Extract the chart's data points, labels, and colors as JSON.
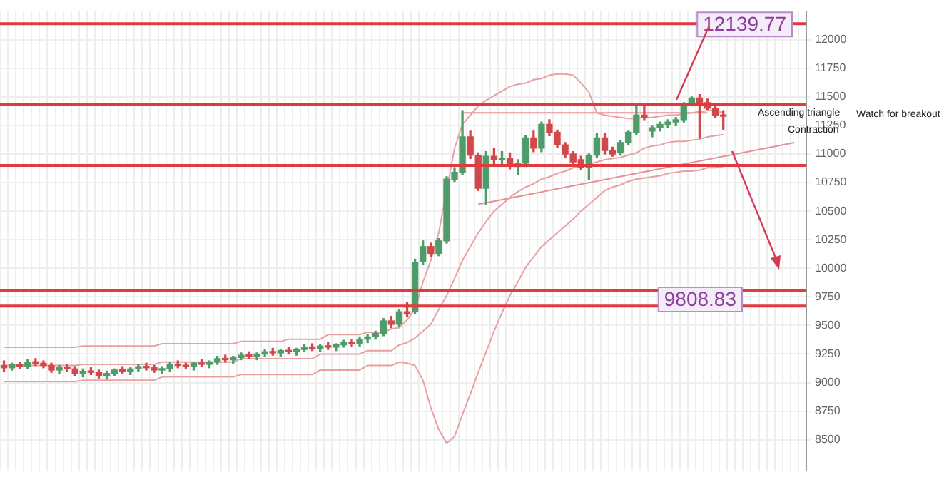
{
  "chart_data": {
    "type": "candlestick",
    "categories": [
      null,
      null,
      null,
      null,
      null,
      null,
      null,
      null,
      null,
      null,
      null,
      null,
      null,
      null,
      null,
      null,
      null,
      null,
      null,
      null,
      null,
      null,
      null,
      null,
      null,
      null,
      null,
      null,
      null,
      null,
      null,
      null,
      null,
      null,
      null,
      null,
      null,
      null,
      null,
      null,
      null,
      null,
      null,
      null,
      null,
      null,
      null,
      null,
      null,
      null,
      null,
      null,
      null,
      null,
      null,
      null,
      null,
      null,
      null,
      null,
      null,
      null,
      null,
      null,
      null,
      null,
      null,
      null,
      null,
      null,
      null,
      null,
      null,
      null,
      null,
      null,
      null,
      null,
      null,
      null,
      null,
      null,
      null,
      null,
      null,
      null,
      null,
      null,
      null,
      null,
      null,
      null,
      null,
      null,
      null,
      null,
      null,
      null,
      null,
      null,
      null,
      null
    ],
    "ohlc": [
      [
        9150,
        9190,
        9100,
        9130
      ],
      [
        9130,
        9170,
        9110,
        9160
      ],
      [
        9160,
        9180,
        9120,
        9140
      ],
      [
        9140,
        9200,
        9120,
        9180
      ],
      [
        9180,
        9210,
        9150,
        9170
      ],
      [
        9170,
        9190,
        9130,
        9150
      ],
      [
        9150,
        9170,
        9090,
        9110
      ],
      [
        9110,
        9150,
        9080,
        9130
      ],
      [
        9130,
        9160,
        9100,
        9120
      ],
      [
        9120,
        9140,
        9060,
        9080
      ],
      [
        9080,
        9120,
        9050,
        9100
      ],
      [
        9100,
        9130,
        9070,
        9090
      ],
      [
        9090,
        9110,
        9040,
        9060
      ],
      [
        9060,
        9100,
        9030,
        9080
      ],
      [
        9080,
        9120,
        9060,
        9110
      ],
      [
        9110,
        9140,
        9080,
        9100
      ],
      [
        9100,
        9130,
        9070,
        9120
      ],
      [
        9120,
        9160,
        9100,
        9140
      ],
      [
        9140,
        9170,
        9110,
        9130
      ],
      [
        9130,
        9150,
        9090,
        9110
      ],
      [
        9110,
        9140,
        9080,
        9120
      ],
      [
        9120,
        9180,
        9100,
        9160
      ],
      [
        9160,
        9190,
        9130,
        9150
      ],
      [
        9150,
        9170,
        9120,
        9140
      ],
      [
        9140,
        9180,
        9110,
        9170
      ],
      [
        9170,
        9200,
        9140,
        9160
      ],
      [
        9160,
        9190,
        9130,
        9180
      ],
      [
        9180,
        9230,
        9160,
        9210
      ],
      [
        9210,
        9240,
        9180,
        9200
      ],
      [
        9200,
        9230,
        9170,
        9220
      ],
      [
        9220,
        9260,
        9200,
        9240
      ],
      [
        9240,
        9270,
        9210,
        9230
      ],
      [
        9230,
        9260,
        9200,
        9250
      ],
      [
        9250,
        9290,
        9230,
        9270
      ],
      [
        9270,
        9300,
        9240,
        9260
      ],
      [
        9260,
        9290,
        9230,
        9280
      ],
      [
        9280,
        9310,
        9250,
        9270
      ],
      [
        9270,
        9300,
        9240,
        9290
      ],
      [
        9290,
        9330,
        9270,
        9310
      ],
      [
        9310,
        9340,
        9280,
        9300
      ],
      [
        9300,
        9330,
        9270,
        9320
      ],
      [
        9320,
        9350,
        9290,
        9310
      ],
      [
        9310,
        9340,
        9280,
        9330
      ],
      [
        9330,
        9370,
        9310,
        9350
      ],
      [
        9350,
        9380,
        9320,
        9340
      ],
      [
        9340,
        9400,
        9320,
        9380
      ],
      [
        9380,
        9420,
        9350,
        9400
      ],
      [
        9400,
        9450,
        9380,
        9430
      ],
      [
        9430,
        9560,
        9410,
        9540
      ],
      [
        9540,
        9580,
        9480,
        9510
      ],
      [
        9510,
        9640,
        9490,
        9620
      ],
      [
        9620,
        9700,
        9580,
        9600
      ],
      [
        9620,
        10080,
        9600,
        10050
      ],
      [
        10060,
        10240,
        10030,
        10190
      ],
      [
        10190,
        10220,
        10100,
        10130
      ],
      [
        10130,
        10260,
        10110,
        10240
      ],
      [
        10240,
        10800,
        10220,
        10780
      ],
      [
        10780,
        10880,
        10760,
        10840
      ],
      [
        10840,
        11380,
        10820,
        11150
      ],
      [
        11150,
        11200,
        10960,
        10990
      ],
      [
        10990,
        11010,
        10680,
        10700
      ],
      [
        10700,
        11020,
        10560,
        10980
      ],
      [
        10980,
        11050,
        10900,
        10950
      ],
      [
        10950,
        11020,
        10900,
        10960
      ],
      [
        10960,
        11010,
        10870,
        10900
      ],
      [
        10890,
        10950,
        10820,
        10920
      ],
      [
        10920,
        11160,
        10890,
        11140
      ],
      [
        11140,
        11200,
        11020,
        11050
      ],
      [
        11050,
        11280,
        11020,
        11260
      ],
      [
        11260,
        11300,
        11160,
        11190
      ],
      [
        11190,
        11210,
        11060,
        11080
      ],
      [
        11080,
        11100,
        10970,
        11000
      ],
      [
        11000,
        11020,
        10900,
        10930
      ],
      [
        10950,
        10980,
        10860,
        10880
      ],
      [
        10880,
        11000,
        10780,
        10990
      ],
      [
        10990,
        11180,
        10970,
        11140
      ],
      [
        11140,
        11180,
        11000,
        11030
      ],
      [
        11030,
        11060,
        10980,
        11000
      ],
      [
        11010,
        11120,
        10990,
        11100
      ],
      [
        11100,
        11200,
        11080,
        11190
      ],
      [
        11190,
        11420,
        11170,
        11340
      ],
      [
        11340,
        11420,
        11300,
        11320
      ],
      [
        11200,
        11250,
        11150,
        11230
      ],
      [
        11230,
        11280,
        11200,
        11260
      ],
      [
        11260,
        11300,
        11230,
        11280
      ],
      [
        11280,
        11320,
        11250,
        11300
      ],
      [
        11300,
        11450,
        11280,
        11440
      ],
      [
        11440,
        11500,
        11420,
        11490
      ],
      [
        11490,
        11520,
        11140,
        11450
      ],
      [
        11450,
        11480,
        11390,
        11400
      ],
      [
        11400,
        11420,
        11320,
        11340
      ],
      [
        11340,
        11380,
        11210,
        11330
      ],
      null,
      null,
      null,
      null,
      null,
      null,
      null,
      null,
      null,
      null
    ],
    "colors": [
      "#d1484b",
      "#4e9c6a",
      "#d1484b",
      "#4e9c6a",
      "#d1484b",
      "#d1484b",
      "#d1484b",
      "#4e9c6a",
      "#d1484b",
      "#d1484b",
      "#4e9c6a",
      "#d1484b",
      "#d1484b",
      "#4e9c6a",
      "#4e9c6a",
      "#d1484b",
      "#4e9c6a",
      "#4e9c6a",
      "#d1484b",
      "#d1484b",
      "#4e9c6a",
      "#4e9c6a",
      "#d1484b",
      "#d1484b",
      "#4e9c6a",
      "#d1484b",
      "#4e9c6a",
      "#4e9c6a",
      "#d1484b",
      "#4e9c6a",
      "#4e9c6a",
      "#d1484b",
      "#4e9c6a",
      "#4e9c6a",
      "#d1484b",
      "#4e9c6a",
      "#d1484b",
      "#4e9c6a",
      "#4e9c6a",
      "#d1484b",
      "#4e9c6a",
      "#d1484b",
      "#4e9c6a",
      "#4e9c6a",
      "#d1484b",
      "#4e9c6a",
      "#4e9c6a",
      "#4e9c6a",
      "#4e9c6a",
      "#d1484b",
      "#4e9c6a",
      "#d1484b",
      "#4e9c6a",
      "#4e9c6a",
      "#d1484b",
      "#4e9c6a",
      "#4e9c6a",
      "#4e9c6a",
      "#4e9c6a",
      "#d1484b",
      "#d1484b",
      "#4e9c6a",
      "#d1484b",
      "#4e9c6a",
      "#d1484b",
      "#4e9c6a",
      "#4e9c6a",
      "#d1484b",
      "#4e9c6a",
      "#d1484b",
      "#d1484b",
      "#d1484b",
      "#d1484b",
      "#d1484b",
      "#4e9c6a",
      "#4e9c6a",
      "#d1484b",
      "#d1484b",
      "#4e9c6a",
      "#4e9c6a",
      "#4e9c6a",
      "#d1484b",
      "#4e9c6a",
      "#4e9c6a",
      "#4e9c6a",
      "#4e9c6a",
      "#4e9c6a",
      "#4e9c6a",
      "#d1484b",
      "#d1484b",
      "#d1484b",
      "#d1484b",
      null,
      null,
      null,
      null,
      null,
      null,
      null,
      null,
      null,
      null
    ],
    "series": [
      {
        "type": "line",
        "color": "#e9a0a0",
        "values": [
          9310,
          9310,
          9310,
          9310,
          9310,
          9310,
          9310,
          9310,
          9310,
          9310,
          9320,
          9320,
          9320,
          9320,
          9320,
          9320,
          9320,
          9320,
          9320,
          9320,
          9340,
          9340,
          9340,
          9340,
          9340,
          9340,
          9340,
          9340,
          9340,
          9340,
          9360,
          9360,
          9360,
          9360,
          9360,
          9360,
          9380,
          9380,
          9380,
          9380,
          9380,
          9420,
          9420,
          9420,
          9420,
          9420,
          9440,
          9440,
          9440,
          9470,
          9480,
          9550,
          9640,
          9880,
          10070,
          10310,
          null,
          11050,
          11260,
          11340,
          11420,
          11470,
          11510,
          11550,
          11590,
          11610,
          11620,
          11650,
          11660,
          11690,
          11700,
          11700,
          11690,
          11620,
          11540,
          11360,
          11340,
          11330,
          11320,
          11310,
          11310,
          11320,
          11320,
          11330,
          11340,
          11340,
          11350,
          11360,
          11370,
          11380,
          11380,
          11360,
          null,
          null,
          null,
          null,
          null,
          null,
          null,
          null,
          null,
          null
        ]
      },
      {
        "type": "line",
        "color": "#e9a0a0",
        "values": [
          9150,
          9150,
          9150,
          9150,
          9150,
          9150,
          9150,
          9150,
          9150,
          9150,
          9160,
          9160,
          9160,
          9160,
          9160,
          9160,
          9160,
          9160,
          9160,
          9160,
          9180,
          9180,
          9180,
          9180,
          9180,
          9180,
          9180,
          9180,
          9180,
          9180,
          9210,
          9210,
          9210,
          9210,
          9210,
          9210,
          9210,
          9210,
          9210,
          9210,
          9250,
          9250,
          9250,
          9250,
          9250,
          9250,
          9280,
          9280,
          9280,
          9280,
          9330,
          9350,
          9390,
          9450,
          9510,
          9640,
          9760,
          9910,
          10070,
          10190,
          10310,
          10410,
          10500,
          10560,
          10620,
          10670,
          10710,
          10740,
          10780,
          10800,
          10830,
          10850,
          10880,
          10900,
          10910,
          10930,
          10950,
          10960,
          10970,
          10990,
          11010,
          11050,
          11070,
          11080,
          11100,
          11110,
          11110,
          11120,
          11130,
          11150,
          11160,
          11170,
          null,
          null,
          null,
          null,
          null,
          null,
          null,
          null,
          null,
          null
        ]
      },
      {
        "type": "line",
        "color": "#e9a0a0",
        "values": [
          9010,
          9010,
          9010,
          9010,
          9010,
          9010,
          9010,
          9010,
          9010,
          9010,
          9020,
          9020,
          9020,
          9020,
          9020,
          9020,
          9020,
          9020,
          9020,
          9020,
          9050,
          9050,
          9050,
          9050,
          9050,
          9050,
          9050,
          9050,
          9050,
          9050,
          9070,
          9070,
          9070,
          9070,
          9070,
          9070,
          9070,
          9070,
          9070,
          9070,
          9110,
          9110,
          9110,
          9110,
          9110,
          9110,
          9150,
          9150,
          9150,
          9150,
          9180,
          9170,
          9150,
          9020,
          8780,
          8590,
          8470,
          8530,
          8720,
          8900,
          9090,
          9270,
          9450,
          9610,
          9760,
          9880,
          10010,
          10100,
          10190,
          10250,
          10310,
          10370,
          10430,
          10500,
          10560,
          10620,
          10680,
          10710,
          10730,
          10760,
          10780,
          10790,
          10800,
          10810,
          10830,
          10840,
          10850,
          10850,
          10860,
          10880,
          10880,
          10890,
          null,
          null,
          null,
          null,
          null,
          null,
          null,
          null,
          null,
          null
        ]
      },
      {
        "type": "line",
        "color": "#e88d95",
        "values": [
          null,
          null,
          null,
          null,
          null,
          null,
          null,
          null,
          null,
          null,
          null,
          null,
          null,
          null,
          null,
          null,
          null,
          null,
          null,
          null,
          null,
          null,
          null,
          null,
          null,
          null,
          null,
          null,
          null,
          null,
          null,
          null,
          null,
          null,
          null,
          null,
          null,
          null,
          null,
          null,
          null,
          null,
          null,
          null,
          null,
          null,
          null,
          null,
          null,
          null,
          null,
          null,
          null,
          null,
          null,
          null,
          null,
          null,
          11360,
          null,
          null,
          null,
          null,
          null,
          null,
          null,
          null,
          null,
          null,
          null,
          null,
          null,
          null,
          null,
          null,
          null,
          null,
          null,
          null,
          null,
          null,
          null,
          null,
          null,
          null,
          null,
          null,
          null,
          null,
          11360,
          null,
          null,
          null,
          null,
          null,
          null,
          null,
          null,
          null,
          null,
          null,
          null
        ]
      },
      {
        "type": "line",
        "color": "#e88d95",
        "values": [
          null,
          null,
          null,
          null,
          null,
          null,
          null,
          null,
          null,
          null,
          null,
          null,
          null,
          null,
          null,
          null,
          null,
          null,
          null,
          null,
          null,
          null,
          null,
          null,
          null,
          null,
          null,
          null,
          null,
          null,
          null,
          null,
          null,
          null,
          null,
          null,
          null,
          null,
          null,
          null,
          null,
          null,
          null,
          null,
          null,
          null,
          null,
          null,
          null,
          null,
          null,
          null,
          null,
          null,
          null,
          null,
          null,
          null,
          null,
          null,
          10560,
          null,
          null,
          null,
          null,
          null,
          null,
          null,
          null,
          null,
          null,
          null,
          null,
          null,
          null,
          null,
          null,
          null,
          null,
          null,
          null,
          null,
          null,
          null,
          null,
          null,
          null,
          null,
          null,
          null,
          null,
          null,
          null,
          null,
          null,
          null,
          null,
          null,
          null,
          null,
          11100,
          null
        ]
      }
    ],
    "marker": "none",
    "ylim": [
      8230,
      12250
    ],
    "yticks": [
      8500,
      8750,
      9000,
      9250,
      9500,
      9750,
      10000,
      10250,
      10500,
      10750,
      11000,
      11250,
      11500,
      11750,
      12000
    ],
    "tick_labels": "y",
    "grid": true,
    "legend": false,
    "ref_lines": [
      {
        "axis": "y",
        "value": 12139.77,
        "label": "12139.77",
        "color": "#e0393e"
      },
      {
        "axis": "y",
        "value": 11430,
        "color": "#e0393e"
      },
      {
        "axis": "y",
        "value": 10900,
        "color": "#e0393e"
      },
      {
        "axis": "y",
        "value": 9808.83,
        "label": "9808.83",
        "color": "#e0393e"
      },
      {
        "axis": "y",
        "value": 9670,
        "color": "#e0393e"
      }
    ],
    "annotations": [
      "Ascending triangle",
      "Contraction",
      "Watch for breakout"
    ]
  }
}
